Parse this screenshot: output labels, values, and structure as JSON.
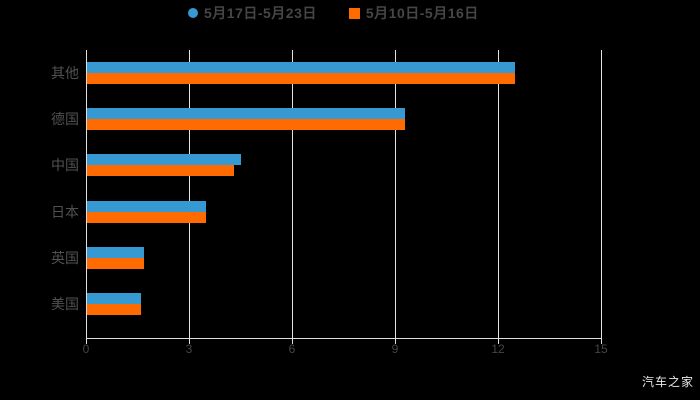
{
  "legend": {
    "items": [
      {
        "label": "5月17日-5月23日",
        "marker": "circle",
        "color": "#3799D1"
      },
      {
        "label": "5月10日-5月16日",
        "marker": "square",
        "color": "#FF6B00"
      }
    ]
  },
  "watermark": "汽车之家",
  "chart_data": {
    "type": "bar",
    "orientation": "horizontal",
    "title": "",
    "xlabel": "",
    "ylabel": "",
    "categories": [
      "其他",
      "德国",
      "中国",
      "日本",
      "英国",
      "美国"
    ],
    "series": [
      {
        "name": "5月17日-5月23日",
        "color": "#3799D1",
        "values": [
          12.5,
          9.3,
          4.5,
          3.5,
          1.7,
          1.6
        ]
      },
      {
        "name": "5月10日-5月16日",
        "color": "#FF6B00",
        "values": [
          12.5,
          9.3,
          4.3,
          3.5,
          1.7,
          1.6
        ]
      }
    ],
    "xlim": [
      0,
      15
    ],
    "x_ticks": [
      "0",
      "3",
      "6",
      "9",
      "12",
      "15"
    ],
    "grid": true,
    "legend_position": "top"
  },
  "colors": {
    "background": "#000000",
    "grid_line": "#E3E3E3",
    "axis_line": "#DFDFDF",
    "tick_label": "#454545",
    "category_label": "#515151",
    "legend_text": "#464646",
    "watermark": "#E8E8E8"
  }
}
